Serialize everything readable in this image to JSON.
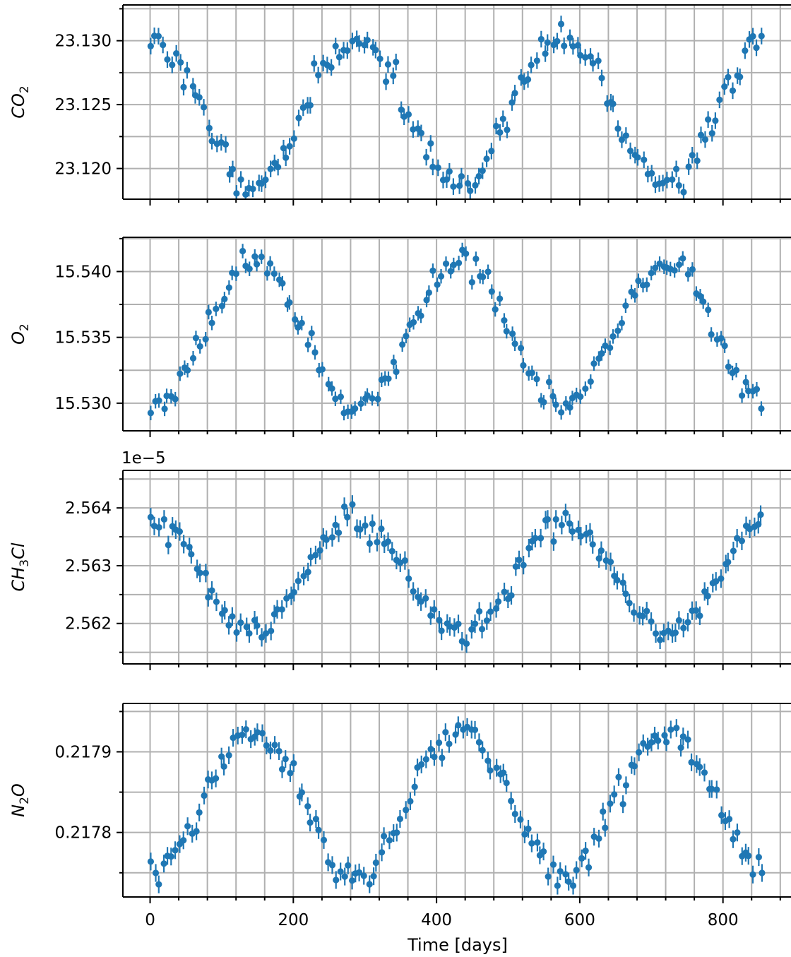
{
  "chart_data": {
    "type": "scatter",
    "xlabel": "Time [days]",
    "xlim": [
      -38,
      895
    ],
    "x_ticks": [
      0,
      200,
      400,
      600,
      800
    ],
    "x_tick_labels": [
      "0",
      "200",
      "400",
      "600",
      "800"
    ],
    "marker_color": "#1f77b4",
    "grid_color": "#b0b0b0",
    "grid": true,
    "panels": [
      {
        "id": "co2",
        "ylabel": "CO",
        "ylabel_sub": "2",
        "ylim": [
          23.1176,
          23.1328
        ],
        "y_ticks": [
          23.12,
          23.125,
          23.13
        ],
        "y_tick_labels": [
          "23.120",
          "23.125",
          "23.130"
        ],
        "offset_text": "",
        "phase": 0.0,
        "mean": 23.1245,
        "amplitude": 0.00565,
        "noise": 0.0006,
        "err": 0.00065,
        "seed": 11
      },
      {
        "id": "o2",
        "ylabel": "O",
        "ylabel_sub": "2",
        "ylim": [
          15.5279,
          15.5426
        ],
        "y_ticks": [
          15.53,
          15.535,
          15.54
        ],
        "y_tick_labels": [
          "15.530",
          "15.535",
          "15.540"
        ],
        "offset_text": "",
        "phase": 3.14159,
        "mean": 15.5353,
        "amplitude": 0.0054,
        "noise": 0.0005,
        "err": 0.00055,
        "seed": 23
      },
      {
        "id": "ch3cl",
        "ylabel": "CH",
        "ylabel_sub": "3",
        "ylabel_tail": "Cl",
        "ylim": [
          2.5613,
          2.56465
        ],
        "y_ticks": [
          2.562,
          2.563,
          2.564
        ],
        "y_tick_labels": [
          "2.562",
          "2.563",
          "2.564"
        ],
        "offset_text": "1e−5",
        "phase": 0.0,
        "mean": 2.5628,
        "amplitude": 0.00097,
        "noise": 0.00013,
        "err": 0.00016,
        "seed": 37
      },
      {
        "id": "n2o",
        "ylabel": "N",
        "ylabel_sub": "2",
        "ylabel_tail": "O",
        "ylim": [
          0.21772,
          0.21796
        ],
        "y_ticks": [
          0.2178,
          0.2179
        ],
        "y_tick_labels": [
          "0.2178",
          "0.2179"
        ],
        "offset_text": "",
        "phase": 3.14159,
        "mean": 0.217837,
        "amplitude": 8.85e-05,
        "noise": 9e-06,
        "err": 1.1e-05,
        "seed": 53
      }
    ],
    "series_model": {
      "period_days": 288,
      "x_start": 0,
      "x_end": 858,
      "n_points": 150
    }
  }
}
